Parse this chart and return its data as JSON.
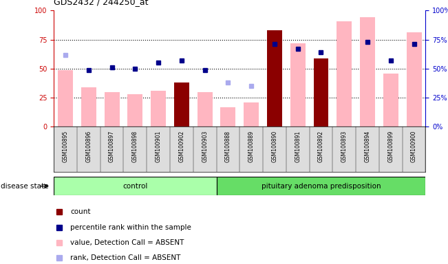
{
  "title": "GDS2432 / 244250_at",
  "samples": [
    "GSM100895",
    "GSM100896",
    "GSM100897",
    "GSM100898",
    "GSM100901",
    "GSM100902",
    "GSM100903",
    "GSM100888",
    "GSM100889",
    "GSM100890",
    "GSM100891",
    "GSM100892",
    "GSM100893",
    "GSM100894",
    "GSM100899",
    "GSM100900"
  ],
  "control_count": 7,
  "group_labels": [
    "control",
    "pituitary adenoma predisposition"
  ],
  "pink_bars": [
    49,
    34,
    30,
    28,
    31,
    38,
    30,
    17,
    21,
    83,
    72,
    59,
    91,
    94,
    46,
    81
  ],
  "dark_red_bars": [
    0,
    0,
    0,
    0,
    0,
    38,
    0,
    0,
    0,
    83,
    0,
    59,
    0,
    0,
    0,
    0
  ],
  "blue_dots": [
    null,
    49,
    51,
    50,
    55,
    57,
    49,
    null,
    null,
    71,
    67,
    64,
    null,
    73,
    57,
    71
  ],
  "light_blue_dots": [
    62,
    null,
    null,
    null,
    null,
    null,
    null,
    38,
    35,
    null,
    null,
    null,
    null,
    null,
    null,
    null
  ],
  "ylim": [
    0,
    100
  ],
  "yticks": [
    0,
    25,
    50,
    75,
    100
  ],
  "ytick_labels_left": [
    "0",
    "25",
    "50",
    "75",
    "100"
  ],
  "ytick_labels_right": [
    "0%",
    "25%",
    "50%",
    "75%",
    "100%"
  ],
  "grid_lines": [
    25,
    50,
    75
  ],
  "pink_bar_color": "#FFB6C1",
  "dark_red_bar_color": "#8B0000",
  "blue_dot_color": "#00008B",
  "light_blue_dot_color": "#AAAAEE",
  "control_color": "#AAFFAA",
  "disease_color": "#66DD66",
  "left_axis_color": "#CC0000",
  "right_axis_color": "#0000CC",
  "xticklabel_bg": "#DDDDDD",
  "legend_items": [
    [
      "#8B0000",
      "count"
    ],
    [
      "#00008B",
      "percentile rank within the sample"
    ],
    [
      "#FFB6C1",
      "value, Detection Call = ABSENT"
    ],
    [
      "#AAAAEE",
      "rank, Detection Call = ABSENT"
    ]
  ]
}
